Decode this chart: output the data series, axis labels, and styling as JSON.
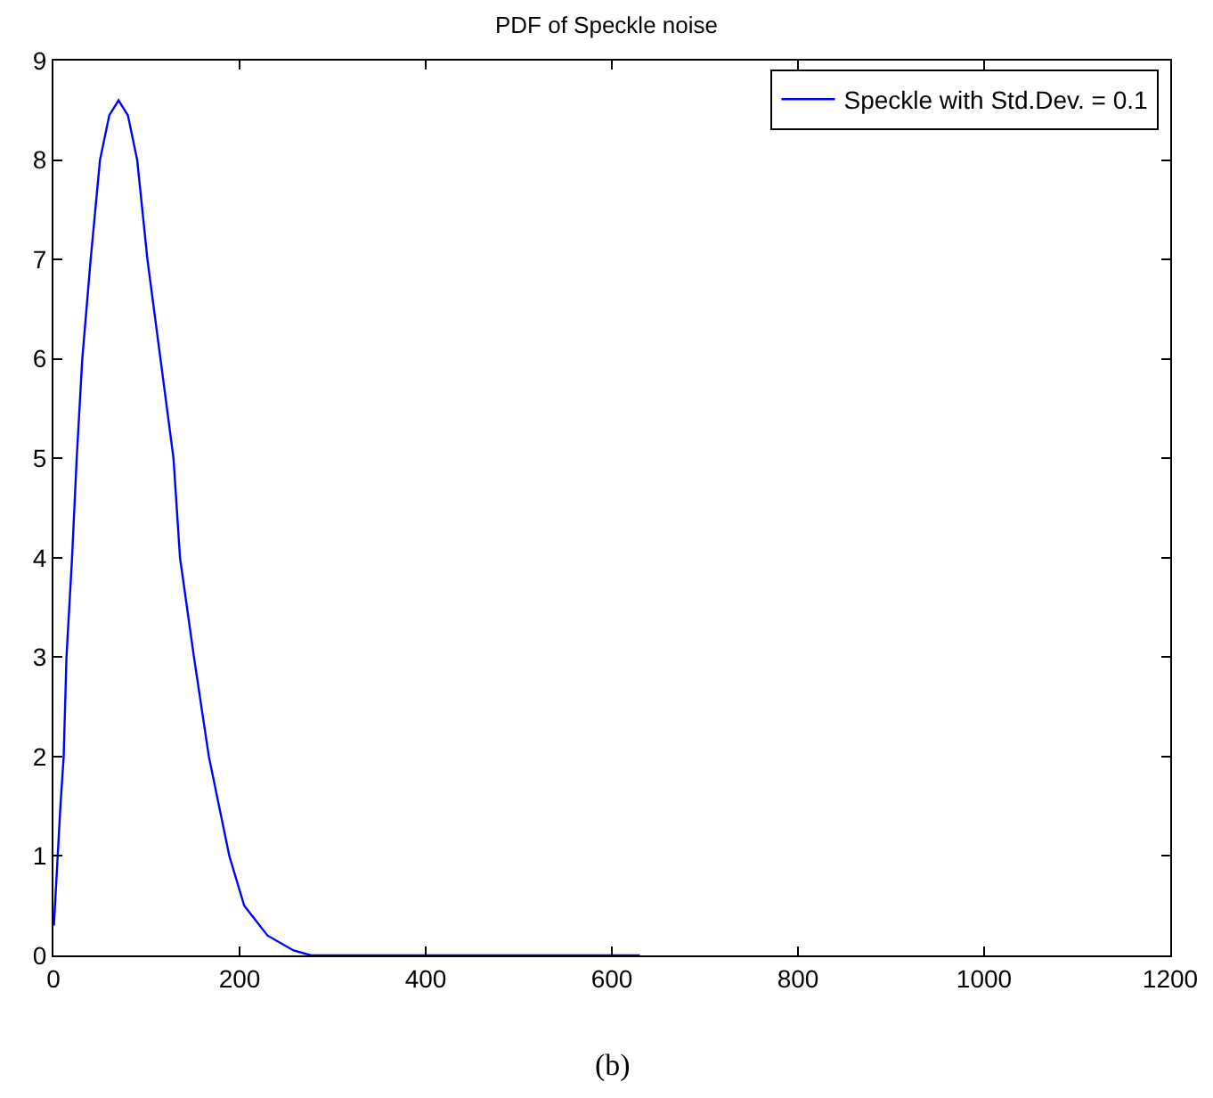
{
  "chart_data": {
    "type": "line",
    "title": "PDF of Speckle noise",
    "annotations": [
      "(b)"
    ],
    "series": [
      {
        "name": "Speckle with Std.Dev. = 0.1",
        "color": "#0000ff",
        "x": [
          0.5,
          4,
          7.5,
          11,
          14,
          20,
          25,
          31,
          40,
          50,
          60,
          70,
          80,
          90,
          101,
          115,
          129,
          136,
          151,
          167,
          189,
          205,
          230,
          258,
          277,
          350,
          450,
          550,
          630
        ],
        "values": [
          0.3,
          0.9,
          1.5,
          2,
          3,
          4,
          5,
          6,
          7,
          8,
          8.45,
          8.6,
          8.45,
          8,
          7,
          6,
          5,
          4,
          3,
          2,
          1,
          0.5,
          0.2,
          0.05,
          0,
          0,
          0,
          0,
          0
        ]
      }
    ],
    "xlim": [
      0,
      1200
    ],
    "xticks": [
      0,
      200,
      400,
      600,
      800,
      1000,
      1200
    ],
    "ylim": [
      0,
      9
    ],
    "yticks": [
      0,
      1,
      2,
      3,
      4,
      5,
      6,
      7,
      8,
      9
    ],
    "grid": false,
    "legend": "top right",
    "marker": "none",
    "line_style": "solid"
  }
}
